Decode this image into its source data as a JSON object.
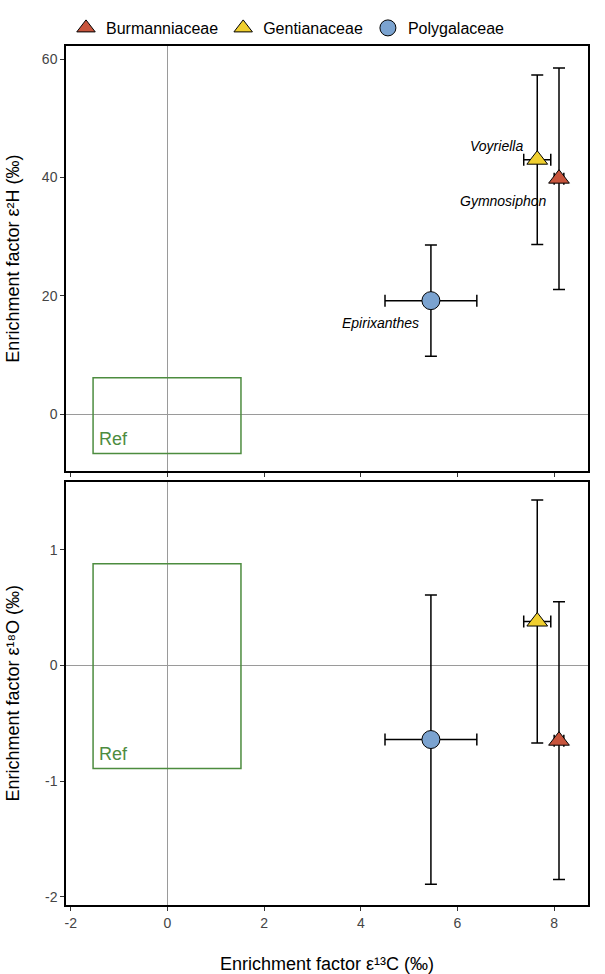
{
  "chart_data": [
    {
      "type": "scatter",
      "y_label": "Enrichment factor ε²H (‰)",
      "xlim": [
        -2.1,
        8.7
      ],
      "xticks": [
        -2,
        0,
        2,
        4,
        6,
        8
      ],
      "ylim": [
        -9.6,
        62.2
      ],
      "yticks": [
        0,
        20,
        40,
        60
      ],
      "tick_labels": "y",
      "legend": "top",
      "ref_box": {
        "label": "Ref",
        "x": [
          -1.54,
          1.52
        ],
        "y": [
          -6.6,
          6.2
        ],
        "color": "#4d8c3f"
      },
      "series": [
        {
          "name": "Burmanniaceae",
          "color": "#c8553d",
          "marker": "triangle-up",
          "label": "Gymnosiphon",
          "x": 8.1,
          "y": 39.8,
          "x_error": 0.1,
          "y_error": 18.7
        },
        {
          "name": "Gentianaceae",
          "color": "#f0cf2f",
          "marker": "triangle-up",
          "label": "Voyriella",
          "x": 7.65,
          "y": 43.0,
          "x_error": 0.28,
          "y_error": 14.3
        },
        {
          "name": "Polygalaceae",
          "color": "#7ba3d0",
          "marker": "circle",
          "label": "Epirixanthes",
          "x": 5.45,
          "y": 19.2,
          "x_error": 0.95,
          "y_error": 9.4
        }
      ]
    },
    {
      "type": "scatter",
      "x_label": "Enrichment factor ε¹³C (‰)",
      "y_label": "Enrichment factor ε¹⁸O (‰)",
      "xlim": [
        -2.1,
        8.7
      ],
      "xticks": [
        -2,
        0,
        2,
        4,
        6,
        8
      ],
      "ylim": [
        -2.07,
        1.59
      ],
      "yticks": [
        -2,
        -1,
        0,
        1
      ],
      "ref_box": {
        "label": "Ref",
        "x": [
          -1.54,
          1.52
        ],
        "y": [
          -0.89,
          0.88
        ],
        "color": "#4d8c3f"
      },
      "series": [
        {
          "name": "Burmanniaceae",
          "color": "#c8553d",
          "marker": "triangle-up",
          "x": 8.1,
          "y": -0.65,
          "x_error": 0.1,
          "y_error": 1.2
        },
        {
          "name": "Gentianaceae",
          "color": "#f0cf2f",
          "marker": "triangle-up",
          "x": 7.65,
          "y": 0.38,
          "x_error": 0.28,
          "y_error": 1.05
        },
        {
          "name": "Polygalaceae",
          "color": "#7ba3d0",
          "marker": "circle",
          "x": 5.45,
          "y": -0.64,
          "x_error": 0.95,
          "y_error": 1.25
        }
      ]
    }
  ]
}
